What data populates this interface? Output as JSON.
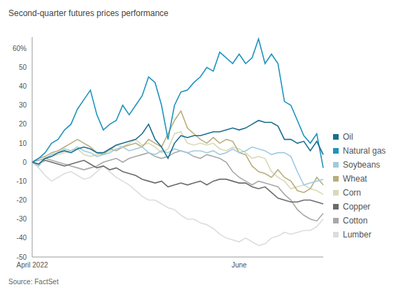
{
  "chart_data": {
    "type": "line",
    "title": "Second-quarter futures prices performance",
    "source": "Source: FactSet",
    "categories": [
      "April 2022",
      null,
      null,
      null,
      null,
      null,
      null,
      null,
      null,
      null,
      null,
      null,
      null,
      null,
      null,
      null,
      null,
      null,
      null,
      null,
      null,
      null,
      null,
      null,
      null,
      null,
      null,
      null,
      null,
      null,
      null,
      null,
      "June",
      null,
      null,
      null,
      null,
      null,
      null,
      null,
      null,
      null,
      null,
      null,
      null,
      null
    ],
    "series": [
      {
        "name": "Oil",
        "color": "#1a6e8e",
        "values": [
          0,
          -1,
          2,
          3,
          5,
          6,
          5,
          7,
          8,
          7,
          5,
          5,
          7,
          9,
          10,
          11,
          12,
          15,
          20,
          12,
          8,
          2,
          10,
          14,
          13,
          14,
          14,
          15,
          16,
          16,
          17,
          18,
          17,
          18,
          20,
          22,
          21,
          21,
          19,
          12,
          12,
          10,
          11,
          6,
          11,
          4
        ]
      },
      {
        "name": "Natural gas",
        "color": "#1f93bd",
        "values": [
          0,
          2,
          5,
          10,
          12,
          17,
          20,
          28,
          33,
          38,
          25,
          17,
          20,
          22,
          30,
          25,
          30,
          35,
          45,
          42,
          30,
          12,
          30,
          37,
          38,
          42,
          45,
          50,
          48,
          58,
          55,
          52,
          57,
          52,
          55,
          65,
          52,
          57,
          52,
          32,
          30,
          22,
          14,
          10,
          15,
          -3
        ]
      },
      {
        "name": "Soybeans",
        "color": "#9ecbe0",
        "values": [
          0,
          -2,
          2,
          4,
          5,
          7,
          6,
          8,
          6,
          5,
          3,
          4,
          5,
          7,
          8,
          6,
          7,
          8,
          5,
          4,
          6,
          5,
          7,
          6,
          5,
          6,
          6,
          5,
          6,
          4,
          5,
          7,
          5,
          6,
          8,
          7,
          6,
          4,
          5,
          5,
          3,
          -5,
          -12,
          -11,
          -10,
          -9
        ]
      },
      {
        "name": "Wheat",
        "color": "#b8ae7c",
        "values": [
          0,
          2,
          3,
          5,
          6,
          8,
          10,
          12,
          10,
          8,
          5,
          4,
          7,
          6,
          8,
          9,
          10,
          8,
          12,
          10,
          8,
          15,
          22,
          27,
          18,
          15,
          12,
          10,
          13,
          10,
          12,
          11,
          5,
          4,
          -2,
          -5,
          -6,
          -8,
          -4,
          -8,
          -10,
          -15,
          -16,
          -14,
          -8,
          -12
        ]
      },
      {
        "name": "Corn",
        "color": "#d8d9b8",
        "values": [
          0,
          -2,
          2,
          3,
          4,
          5,
          6,
          7,
          4,
          3,
          4,
          5,
          6,
          9,
          8,
          10,
          12,
          9,
          10,
          8,
          5,
          7,
          15,
          16,
          10,
          9,
          10,
          9,
          10,
          7,
          6,
          8,
          7,
          5,
          2,
          3,
          2,
          -5,
          -8,
          -10,
          -14,
          -13,
          -12,
          -14,
          -15,
          -17
        ]
      },
      {
        "name": "Copper",
        "color": "#6b6b6b",
        "values": [
          0,
          -1,
          1,
          0,
          -1,
          -2,
          -1,
          0,
          1,
          -1,
          -3,
          -2,
          -4,
          -3,
          -5,
          -6,
          -7,
          -9,
          -10,
          -11,
          -10,
          -13,
          -12,
          -11,
          -12,
          -11,
          -10,
          -12,
          -10,
          -9,
          -9,
          -10,
          -11,
          -11,
          -13,
          -14,
          -13,
          -16,
          -19,
          -20,
          -21,
          -21,
          -20,
          -20,
          -21,
          -22
        ]
      },
      {
        "name": "Cotton",
        "color": "#a8a8a8",
        "values": [
          0,
          1,
          2,
          1,
          0,
          -1,
          -2,
          -3,
          -4,
          -3,
          -2,
          0,
          1,
          2,
          0,
          2,
          3,
          4,
          5,
          3,
          2,
          3,
          5,
          6,
          5,
          3,
          2,
          4,
          3,
          2,
          0,
          -5,
          -8,
          -10,
          -12,
          -10,
          -11,
          -12,
          -13,
          -17,
          -20,
          -25,
          -28,
          -30,
          -31,
          -27
        ]
      },
      {
        "name": "Lumber",
        "color": "#dcdcdc",
        "values": [
          0,
          -3,
          -7,
          -10,
          -8,
          -6,
          -5,
          -7,
          -9,
          -8,
          -5,
          -2,
          -5,
          -8,
          -10,
          -12,
          -15,
          -18,
          -20,
          -20,
          -22,
          -24,
          -25,
          -28,
          -30,
          -30,
          -32,
          -33,
          -35,
          -38,
          -40,
          -41,
          -42,
          -40,
          -42,
          -44,
          -43,
          -40,
          -39,
          -37,
          -38,
          -37,
          -36,
          -36,
          -34,
          -30
        ]
      }
    ],
    "ylim": [
      -50,
      66
    ],
    "yticks": [
      -50,
      -40,
      -30,
      -20,
      -10,
      0,
      10,
      20,
      30,
      40,
      50,
      {
        "value": 60,
        "label": "60%"
      }
    ],
    "grid": false,
    "legend": "right"
  }
}
